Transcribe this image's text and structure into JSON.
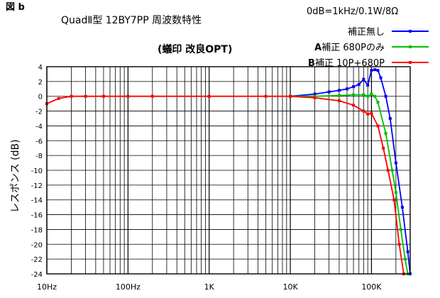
{
  "figure_label": "図 b",
  "title": "QuadⅡ型 12BY7PP 周波数特性",
  "subtitle": "(蟻印 改良OPT)",
  "reference": "0dB=1kHz/0.1W/8Ω",
  "legend_items": [
    {
      "text": "補正無し",
      "prefix": "",
      "color": "#0000ff"
    },
    {
      "text": "補正 680Pのみ",
      "prefix": "A",
      "color": "#00c000"
    },
    {
      "text": "補正 10P+680P",
      "prefix": "B",
      "color": "#ff0000"
    }
  ],
  "chart_data": {
    "type": "line",
    "x_scale": "log",
    "xlim": [
      10,
      300000
    ],
    "ylim": [
      -24,
      4
    ],
    "ylabel": "レスポンス (dB)",
    "x_tick_labels": [
      {
        "value": 10,
        "label": "10Hz"
      },
      {
        "value": 100,
        "label": "100Hz"
      },
      {
        "value": 1000,
        "label": "1K"
      },
      {
        "value": 10000,
        "label": "10K"
      },
      {
        "value": 100000,
        "label": "100K"
      }
    ],
    "y_ticks": [
      4,
      2,
      0,
      -2,
      -4,
      -6,
      -8,
      -10,
      -12,
      -14,
      -16,
      -18,
      -20,
      -22,
      -24
    ],
    "grid": true,
    "legend_position": "top-right",
    "series": [
      {
        "name": "補正無し",
        "color": "#0000ff",
        "x": [
          10000,
          20000,
          30000,
          40000,
          50000,
          60000,
          70000,
          80000,
          90000,
          100000,
          110000,
          120000,
          130000,
          150000,
          170000,
          200000,
          240000,
          280000,
          300000
        ],
        "y": [
          0,
          0.3,
          0.6,
          0.8,
          1.0,
          1.3,
          1.6,
          2.3,
          1.5,
          3.5,
          3.6,
          3.5,
          2.5,
          0,
          -3,
          -9,
          -15,
          -21,
          -24
        ]
      },
      {
        "name": "補正 680Pのみ",
        "color": "#00c000",
        "x": [
          10000,
          20000,
          40000,
          60000,
          80000,
          90000,
          100000,
          110000,
          120000,
          150000,
          180000,
          200000,
          230000,
          260000,
          280000
        ],
        "y": [
          0,
          0,
          0.1,
          0.2,
          0.2,
          0,
          0.3,
          0,
          -0.8,
          -5,
          -10,
          -13,
          -18,
          -22,
          -24
        ]
      },
      {
        "name": "補正 10P+680P",
        "color": "#ff0000",
        "x": [
          10,
          14,
          20,
          30,
          50,
          100,
          200,
          1000,
          5000,
          10000,
          20000,
          40000,
          60000,
          80000,
          90000,
          100000,
          120000,
          140000,
          160000,
          190000,
          220000,
          250000
        ],
        "y": [
          -1.0,
          -0.3,
          0,
          0,
          0,
          0,
          0,
          0,
          0,
          0,
          -0.2,
          -0.6,
          -1.2,
          -2,
          -2.4,
          -2.3,
          -4,
          -7,
          -10,
          -14,
          -20,
          -24
        ]
      }
    ]
  }
}
